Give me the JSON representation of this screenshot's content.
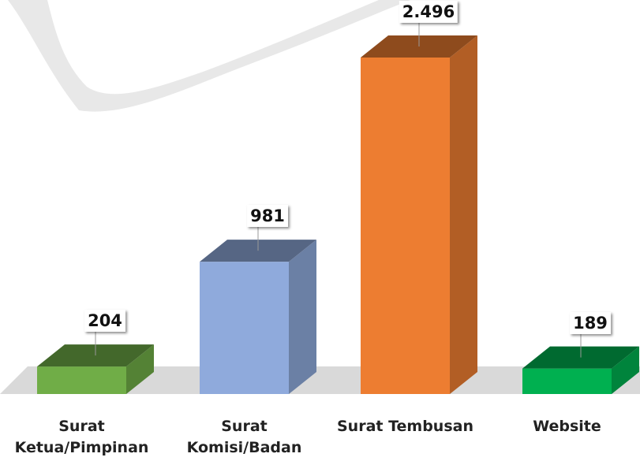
{
  "chart_data": {
    "type": "bar3d",
    "categories": [
      "Surat Ketua/Pimpinan",
      "Surat Komisi/Badan",
      "Surat Tembusan",
      "Website"
    ],
    "values": [
      204,
      981,
      2496,
      189
    ],
    "value_labels": [
      "204",
      "981",
      "2.496",
      "189"
    ],
    "colors": [
      "#70ad47",
      "#8faadc",
      "#ed7d31",
      "#00b050"
    ]
  }
}
